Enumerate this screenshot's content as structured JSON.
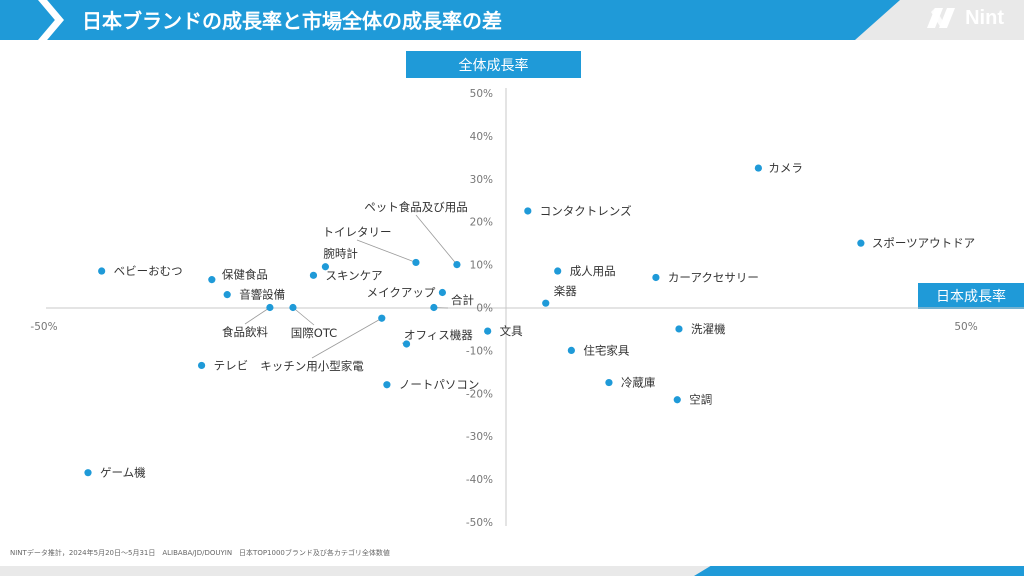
{
  "header": {
    "title": "日本ブランドの成長率と市場全体の成長率の差",
    "logo_text": "Nint",
    "banner_color": "#1f9ad8"
  },
  "footnote": "NINTデータ推計，2024年5月20日～5月31日　ALIBABA/JD/DOUYIN　日本TOP1000ブランド及び各カテゴリ全体数値",
  "chart_data": {
    "type": "scatter",
    "xlabel": "日本成長率",
    "ylabel": "全体成長率",
    "xlim": [
      -50,
      50
    ],
    "ylim": [
      -50,
      50
    ],
    "x_ticks": [
      {
        "value": -50,
        "label": "-50%"
      },
      {
        "value": 50,
        "label": "50%"
      }
    ],
    "y_ticks": [
      {
        "value": 50,
        "label": "50%"
      },
      {
        "value": 40,
        "label": "40%"
      },
      {
        "value": 30,
        "label": "30%"
      },
      {
        "value": 20,
        "label": "20%"
      },
      {
        "value": 10,
        "label": "10%"
      },
      {
        "value": 0,
        "label": "0%"
      },
      {
        "value": -10,
        "label": "-10%"
      },
      {
        "value": -20,
        "label": "-20%"
      },
      {
        "value": -30,
        "label": "-30%"
      },
      {
        "value": -40,
        "label": "-40%"
      },
      {
        "value": -50,
        "label": "-50%"
      }
    ],
    "point_color": "#1f9ad8",
    "points": [
      {
        "label": "カメラ",
        "x": 28.5,
        "y": 32.5
      },
      {
        "label": "スポーツアウトドア",
        "x": 40.5,
        "y": 15.0
      },
      {
        "label": "コンタクトレンズ",
        "x": 1.5,
        "y": 22.5
      },
      {
        "label": "ペット食品及び用品",
        "x": -6.8,
        "y": 10.0
      },
      {
        "label": "トイレタリー",
        "x": -11.6,
        "y": 10.5
      },
      {
        "label": "腕時計",
        "x": -22.2,
        "y": 9.5
      },
      {
        "label": "スキンケア",
        "x": -23.6,
        "y": 7.5
      },
      {
        "label": "ベビーおむつ",
        "x": -48.4,
        "y": 8.5
      },
      {
        "label": "保健食品",
        "x": -35.5,
        "y": 6.5
      },
      {
        "label": "音響設備",
        "x": -33.7,
        "y": 3.0
      },
      {
        "label": "メイクアップ",
        "x": -8.5,
        "y": 3.5
      },
      {
        "label": "合計",
        "x": -9.5,
        "y": 0.0
      },
      {
        "label": "成人用品",
        "x": 5.0,
        "y": 8.5
      },
      {
        "label": "カーアクセサリー",
        "x": 16.5,
        "y": 7.0
      },
      {
        "label": "楽器",
        "x": 3.6,
        "y": 1.0
      },
      {
        "label": "食品飲料",
        "x": -28.7,
        "y": 0.0
      },
      {
        "label": "国際OTC",
        "x": -26.0,
        "y": 0.0
      },
      {
        "label": "文具",
        "x": -3.2,
        "y": -5.5
      },
      {
        "label": "オフィス機器",
        "x": -12.7,
        "y": -8.5
      },
      {
        "label": "キッチン用小型家電",
        "x": -15.6,
        "y": -2.5
      },
      {
        "label": "洗濯機",
        "x": 19.2,
        "y": -5.0
      },
      {
        "label": "住宅家具",
        "x": 6.6,
        "y": -10.0
      },
      {
        "label": "テレビ",
        "x": -36.7,
        "y": -13.5
      },
      {
        "label": "冷蔵庫",
        "x": 11.0,
        "y": -17.5
      },
      {
        "label": "ノートパソコン",
        "x": -15.0,
        "y": -18.0
      },
      {
        "label": "空調",
        "x": 19.0,
        "y": -21.5
      },
      {
        "label": "ゲーム機",
        "x": -50.0,
        "y": -38.5
      }
    ]
  }
}
